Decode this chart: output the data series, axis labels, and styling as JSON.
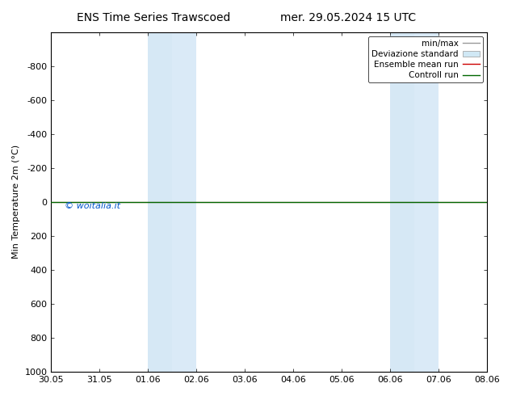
{
  "title_left": "ENS Time Series Trawscoed",
  "title_right": "mer. 29.05.2024 15 UTC",
  "ylabel": "Min Temperature 2m (°C)",
  "ylim_bottom": 1000,
  "ylim_top": -1000,
  "yticks": [
    -800,
    -600,
    -400,
    -200,
    0,
    200,
    400,
    600,
    800,
    1000
  ],
  "xtick_labels": [
    "30.05",
    "31.05",
    "01.06",
    "02.06",
    "03.06",
    "04.06",
    "05.06",
    "06.06",
    "07.06",
    "08.06"
  ],
  "xtick_positions": [
    0,
    1,
    2,
    3,
    4,
    5,
    6,
    7,
    8,
    9
  ],
  "shaded_col1a": {
    "x_start": 2.0,
    "x_end": 2.5,
    "color": "#d6e8f5"
  },
  "shaded_col1b": {
    "x_start": 2.5,
    "x_end": 3.0,
    "color": "#daeaf7"
  },
  "shaded_col2a": {
    "x_start": 7.0,
    "x_end": 7.5,
    "color": "#d6e8f5"
  },
  "shaded_col2b": {
    "x_start": 7.5,
    "x_end": 8.0,
    "color": "#daeaf7"
  },
  "control_run_y": 0,
  "ensemble_mean_y": 0,
  "watermark": "© woitalia.it",
  "watermark_color": "#0055cc",
  "legend_labels": [
    "min/max",
    "Deviazione standard",
    "Ensemble mean run",
    "Controll run"
  ],
  "legend_line_color": "#999999",
  "legend_patch_color": "#d0e8f5",
  "ensemble_color": "#cc0000",
  "control_color": "#006600",
  "background_color": "#ffffff",
  "plot_bg_color": "#ffffff",
  "tick_fontsize": 8,
  "label_fontsize": 8,
  "title_fontsize": 10,
  "legend_fontsize": 7.5
}
